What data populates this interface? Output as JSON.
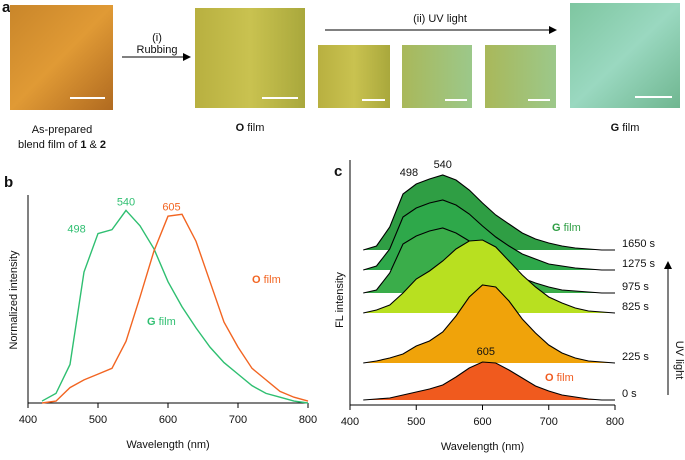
{
  "panel_a": {
    "label": "a",
    "step1_num": "(i)",
    "step1": "Rubbing",
    "step2": "(ii) UV light",
    "caption_left_1": "As-prepared",
    "caption_left_2": "blend film of ",
    "caption_left_3": "1",
    "caption_left_4": " & ",
    "caption_left_5": "2",
    "caption_o_1": "O",
    "caption_o_2": " film",
    "caption_g_1": "G",
    "caption_g_2": " film"
  },
  "chart_data": [
    {
      "type": "line",
      "label": "b",
      "xlabel": "Wavelength (nm)",
      "ylabel": "Normalized intensity",
      "x": [
        420,
        440,
        460,
        480,
        500,
        520,
        540,
        560,
        580,
        600,
        620,
        640,
        660,
        680,
        700,
        720,
        740,
        760,
        780,
        800
      ],
      "xlim": [
        400,
        800
      ],
      "xticks": [
        400,
        500,
        600,
        700,
        800
      ],
      "ylim": [
        0,
        1.08
      ],
      "series": [
        {
          "name": "G film",
          "color": "#2fbf71",
          "peaks": [
            498,
            540
          ],
          "values": [
            0.01,
            0.05,
            0.2,
            0.68,
            0.88,
            0.9,
            1.0,
            0.92,
            0.8,
            0.63,
            0.5,
            0.39,
            0.29,
            0.21,
            0.15,
            0.09,
            0.05,
            0.03,
            0.01,
            0
          ]
        },
        {
          "name": "O film",
          "color": "#f26522",
          "peaks": [
            605
          ],
          "values": [
            0,
            0.01,
            0.08,
            0.12,
            0.15,
            0.18,
            0.32,
            0.55,
            0.79,
            0.97,
            0.98,
            0.84,
            0.63,
            0.42,
            0.29,
            0.18,
            0.12,
            0.06,
            0.03,
            0.01
          ]
        }
      ]
    },
    {
      "type": "waterfall",
      "label": "c",
      "xlabel": "Wavelength (nm)",
      "ylabel": "FL intensity",
      "arrow_label": "UV light",
      "annotations": [
        "G film",
        "O film"
      ],
      "x": [
        420,
        440,
        460,
        480,
        500,
        520,
        540,
        560,
        580,
        600,
        620,
        640,
        660,
        680,
        700,
        720,
        740,
        760,
        780,
        800
      ],
      "xlim": [
        400,
        800
      ],
      "xticks": [
        400,
        500,
        600,
        700,
        800
      ],
      "ylim": [
        0,
        2.45
      ],
      "series": [
        {
          "name": "1650 s",
          "color": "#2f9e44",
          "offset": 1.55,
          "peaks": [
            498,
            540
          ],
          "values": [
            0,
            0.04,
            0.23,
            0.56,
            0.66,
            0.71,
            0.75,
            0.7,
            0.6,
            0.47,
            0.35,
            0.26,
            0.17,
            0.11,
            0.07,
            0.04,
            0.02,
            0.01,
            0,
            0
          ]
        },
        {
          "name": "1275 s",
          "color": "#2ea84a",
          "offset": 1.35,
          "peaks": [],
          "values": [
            0,
            0.04,
            0.21,
            0.53,
            0.62,
            0.67,
            0.7,
            0.65,
            0.56,
            0.44,
            0.33,
            0.24,
            0.16,
            0.11,
            0.06,
            0.04,
            0.02,
            0.01,
            0,
            0
          ]
        },
        {
          "name": "975 s",
          "color": "#3aad4a",
          "offset": 1.12,
          "peaks": [],
          "values": [
            0,
            0.03,
            0.2,
            0.49,
            0.57,
            0.62,
            0.65,
            0.6,
            0.52,
            0.41,
            0.31,
            0.22,
            0.15,
            0.1,
            0.06,
            0.03,
            0.02,
            0.01,
            0,
            0
          ]
        },
        {
          "name": "825 s",
          "color": "#b8e020",
          "offset": 0.92,
          "peaks": [],
          "values": [
            0,
            0.03,
            0.08,
            0.2,
            0.34,
            0.42,
            0.52,
            0.64,
            0.72,
            0.73,
            0.66,
            0.52,
            0.38,
            0.26,
            0.16,
            0.1,
            0.05,
            0.02,
            0.01,
            0
          ]
        },
        {
          "name": "225 s",
          "color": "#f0a30a",
          "offset": 0.42,
          "peaks": [],
          "values": [
            0,
            0.02,
            0.05,
            0.09,
            0.17,
            0.22,
            0.31,
            0.47,
            0.66,
            0.78,
            0.76,
            0.62,
            0.44,
            0.3,
            0.18,
            0.1,
            0.05,
            0.02,
            0.01,
            0
          ]
        },
        {
          "name": "0 s",
          "color": "#f05a1e",
          "offset": 0.05,
          "peaks": [
            605
          ],
          "values": [
            0,
            0.01,
            0.02,
            0.05,
            0.08,
            0.11,
            0.15,
            0.23,
            0.32,
            0.38,
            0.37,
            0.3,
            0.22,
            0.14,
            0.09,
            0.05,
            0.03,
            0.01,
            0,
            0
          ]
        }
      ]
    }
  ]
}
